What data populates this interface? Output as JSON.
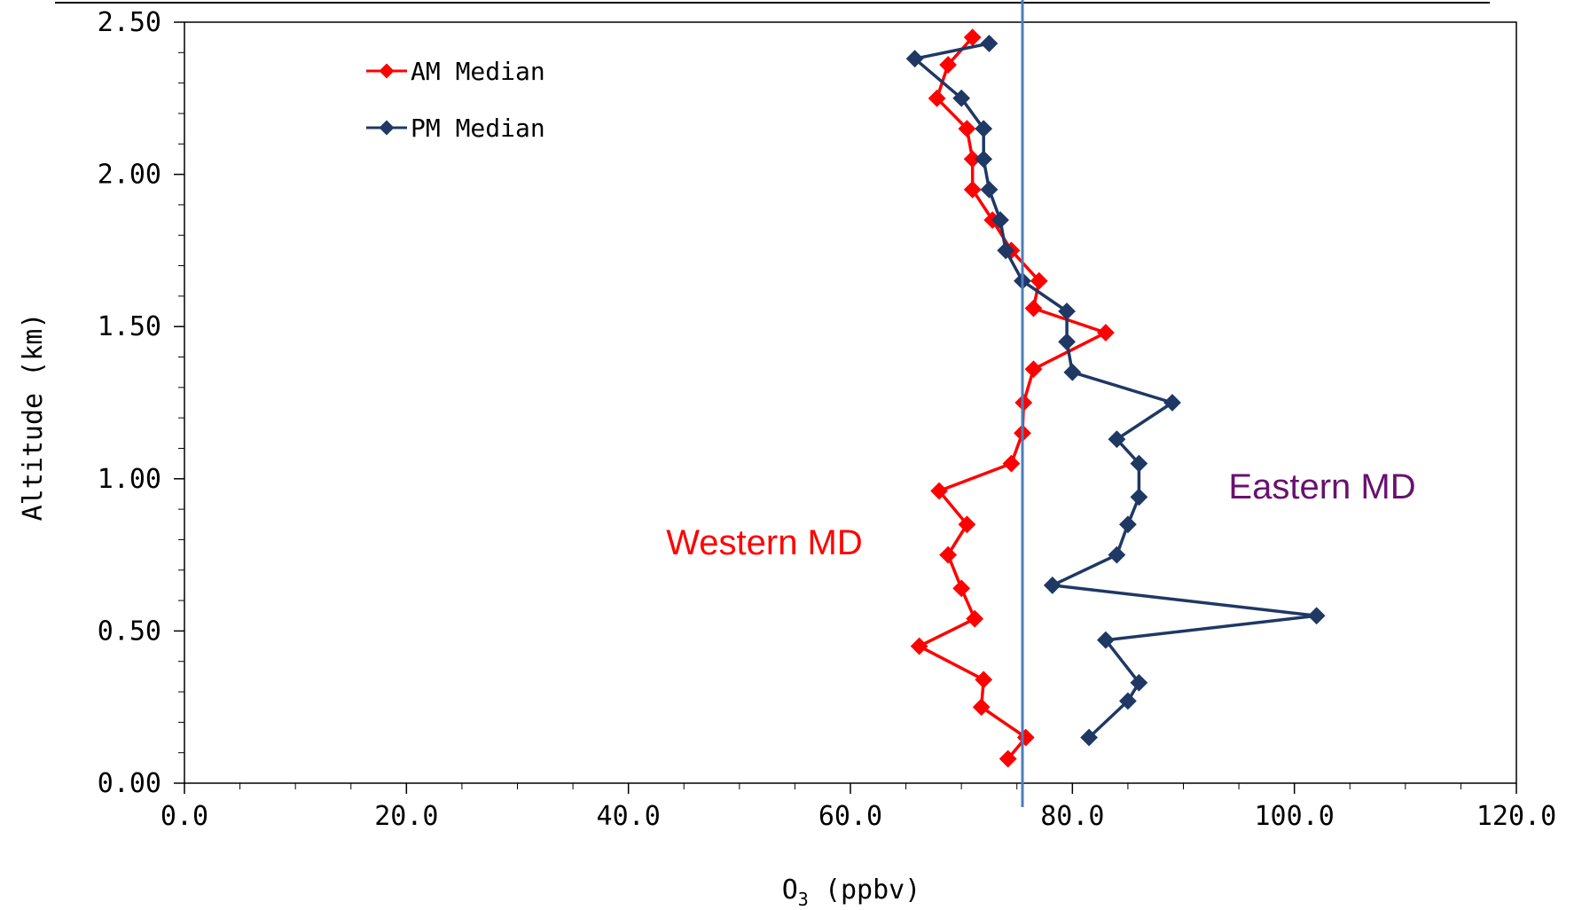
{
  "chart_data": {
    "type": "line",
    "xlabel": "O",
    "xlabel_sub": "3",
    "xlabel_unit": " (ppbv)",
    "ylabel": "Altitude (km)",
    "xlim": [
      0,
      120
    ],
    "ylim": [
      0,
      2.5
    ],
    "x_ticks": [
      "0.0",
      "20.0",
      "40.0",
      "60.0",
      "80.0",
      "100.0",
      "120.0"
    ],
    "y_ticks": [
      "0.00",
      "0.50",
      "1.00",
      "1.50",
      "2.00",
      "2.50"
    ],
    "grid": false,
    "legend": "top-left",
    "reference_line_x": 75.5,
    "series": [
      {
        "name": "AM Median",
        "color": "#ff0000",
        "points": [
          [
            74.2,
            0.08
          ],
          [
            75.8,
            0.15
          ],
          [
            71.8,
            0.25
          ],
          [
            72.0,
            0.34
          ],
          [
            66.2,
            0.45
          ],
          [
            71.2,
            0.54
          ],
          [
            70.0,
            0.64
          ],
          [
            68.8,
            0.75
          ],
          [
            70.5,
            0.85
          ],
          [
            68.0,
            0.96
          ],
          [
            74.5,
            1.05
          ],
          [
            75.5,
            1.15
          ],
          [
            75.6,
            1.25
          ],
          [
            76.5,
            1.36
          ],
          [
            83.0,
            1.48
          ],
          [
            76.5,
            1.56
          ],
          [
            77.0,
            1.65
          ],
          [
            74.5,
            1.75
          ],
          [
            72.8,
            1.85
          ],
          [
            71.0,
            1.95
          ],
          [
            71.0,
            2.05
          ],
          [
            70.5,
            2.15
          ],
          [
            67.8,
            2.25
          ],
          [
            68.8,
            2.36
          ],
          [
            71.0,
            2.45
          ]
        ]
      },
      {
        "name": "PM Median",
        "color": "#1f3864",
        "points": [
          [
            81.5,
            0.15
          ],
          [
            85.0,
            0.27
          ],
          [
            86.0,
            0.33
          ],
          [
            83.0,
            0.47
          ],
          [
            102.0,
            0.55
          ],
          [
            78.2,
            0.65
          ],
          [
            84.0,
            0.75
          ],
          [
            85.0,
            0.85
          ],
          [
            86.0,
            0.94
          ],
          [
            86.0,
            1.05
          ],
          [
            84.0,
            1.13
          ],
          [
            89.0,
            1.25
          ],
          [
            80.0,
            1.35
          ],
          [
            79.5,
            1.45
          ],
          [
            79.5,
            1.55
          ],
          [
            75.5,
            1.65
          ],
          [
            74.0,
            1.75
          ],
          [
            73.5,
            1.85
          ],
          [
            72.5,
            1.95
          ],
          [
            72.0,
            2.05
          ],
          [
            72.0,
            2.15
          ],
          [
            70.0,
            2.25
          ],
          [
            65.8,
            2.38
          ],
          [
            72.5,
            2.43
          ]
        ]
      }
    ],
    "annotations": [
      {
        "text": "Western MD",
        "color": "#ff0000",
        "x": 53.5,
        "y": 0.795
      },
      {
        "text": "Eastern MD",
        "color": "#6a1070",
        "x": 102.0,
        "y": 0.98
      }
    ]
  }
}
